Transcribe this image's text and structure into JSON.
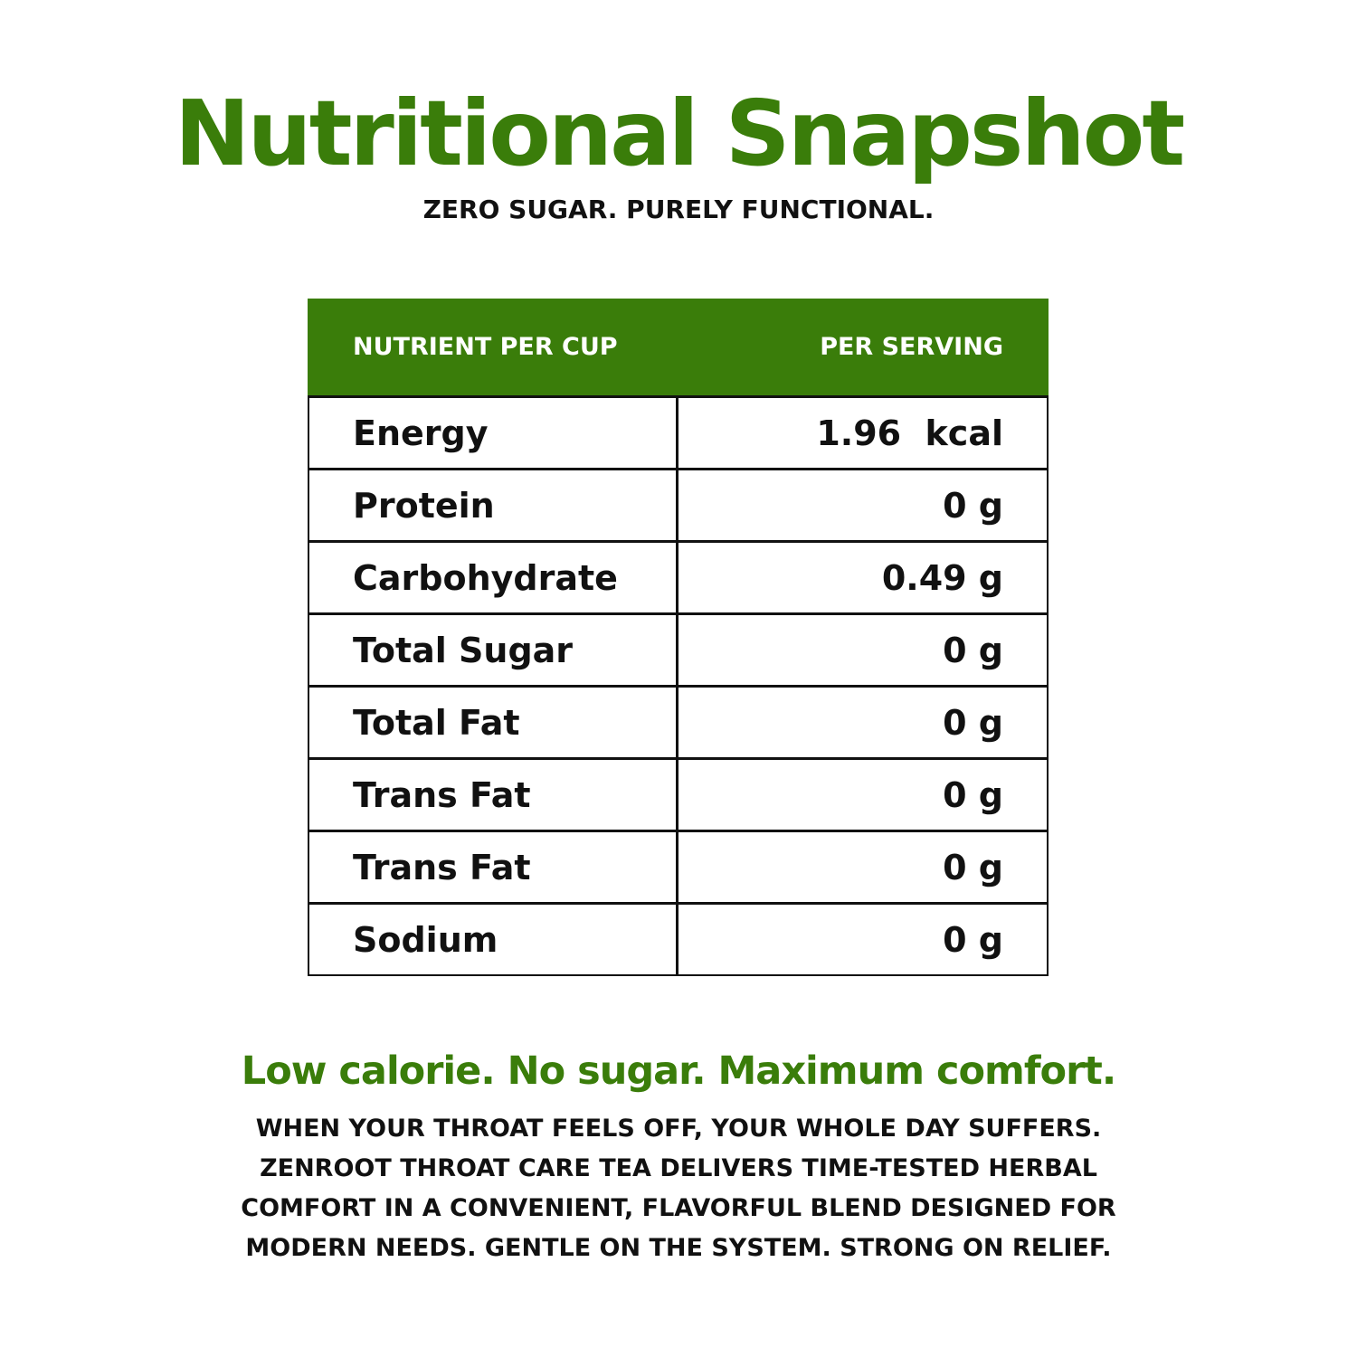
{
  "header": {
    "title": "Nutritional Snapshot",
    "subtitle": "ZERO SUGAR. PURELY FUNCTIONAL."
  },
  "table": {
    "columns": [
      "NUTRIENT PER CUP",
      "PER SERVING"
    ],
    "rows": [
      {
        "nutrient": "Energy",
        "value": "1.96  kcal"
      },
      {
        "nutrient": "Protein",
        "value": "0 g"
      },
      {
        "nutrient": "Carbohydrate",
        "value": "0.49 g"
      },
      {
        "nutrient": "Total Sugar",
        "value": "0 g"
      },
      {
        "nutrient": "Total Fat",
        "value": "0 g"
      },
      {
        "nutrient": "Trans Fat",
        "value": "0 g"
      },
      {
        "nutrient": "Trans Fat",
        "value": "0 g"
      },
      {
        "nutrient": "Sodium",
        "value": "0 g"
      }
    ]
  },
  "footer": {
    "tagline": "Low calorie. No sugar. Maximum comfort.",
    "description_lines": [
      "WHEN YOUR THROAT FEELS OFF, YOUR WHOLE DAY SUFFERS.",
      "ZENROOT THROAT CARE TEA DELIVERS TIME-TESTED HERBAL",
      "COMFORT IN A CONVENIENT, FLAVORFUL BLEND DESIGNED FOR",
      "MODERN NEEDS. GENTLE ON THE SYSTEM. STRONG ON RELIEF."
    ]
  },
  "colors": {
    "brand_green": "#3a7d0a",
    "text": "#111111",
    "background": "#ffffff"
  }
}
